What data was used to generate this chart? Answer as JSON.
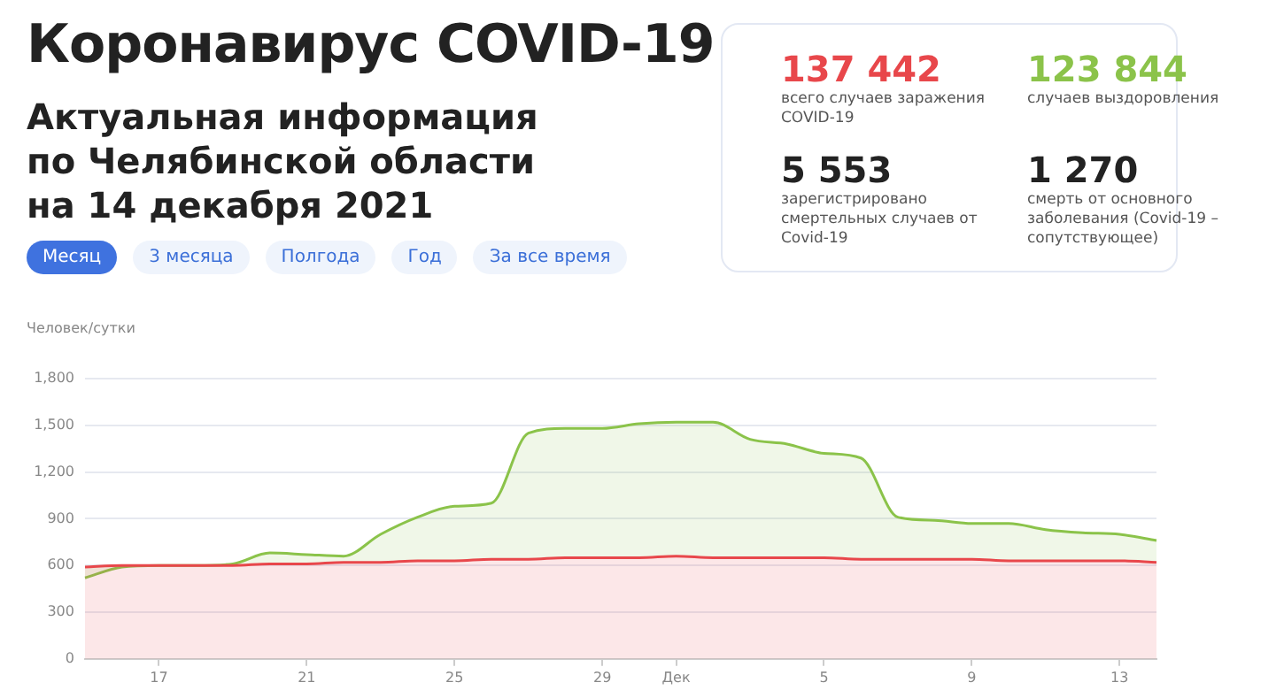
{
  "chart_data": [
    {
      "type": "area",
      "title": "Коронавирус COVID-19",
      "subtitle": "Актуальная информация по Челябинской области на 14 декабря 2021",
      "ylabel": "Человек/сутки",
      "annotations": [
        "Месяц",
        "3 месяца",
        "Полгода",
        "Год",
        "За все время"
      ],
      "categories": [
        null,
        null,
        "17",
        null,
        null,
        null,
        "21",
        null,
        null,
        null,
        "25",
        null,
        null,
        null,
        "29",
        null,
        "Дек",
        null,
        null,
        null,
        "5",
        null,
        null,
        null,
        "9",
        null,
        null,
        null,
        "13",
        null
      ],
      "series": [
        {
          "color": "#8bc34a",
          "values": [
            520,
            590,
            600,
            600,
            610,
            680,
            670,
            660,
            800,
            910,
            980,
            1000,
            1450,
            1480,
            1480,
            1510,
            1520,
            1520,
            1410,
            1380,
            1320,
            1290,
            910,
            890,
            870,
            870,
            830,
            810,
            800,
            760
          ]
        },
        {
          "color": "#e8474b",
          "values": [
            590,
            600,
            600,
            600,
            600,
            610,
            610,
            620,
            620,
            630,
            630,
            640,
            640,
            650,
            650,
            650,
            660,
            650,
            650,
            650,
            650,
            640,
            640,
            640,
            640,
            630,
            630,
            630,
            630,
            620
          ]
        }
      ],
      "ylim": [
        0,
        1800
      ],
      "yticks": [
        0,
        300,
        600,
        900,
        {
          "value": 1200,
          "label": "1,200"
        },
        {
          "value": 1500,
          "label": "1,500"
        },
        {
          "value": 1800,
          "label": "1,800"
        }
      ],
      "grid": "y",
      "legend": false,
      "marker": "none"
    },
    {
      "type": "other",
      "annotations": [
        "137 442",
        "всего случаев заражения COVID-19",
        "123 844",
        "случаев выздоровления",
        "5 553",
        "зарегистрировано смертельных случаев от Covid-19",
        "1 270",
        "смерть от основного заболевания (Covid-19 – сопутствующее)"
      ]
    }
  ]
}
